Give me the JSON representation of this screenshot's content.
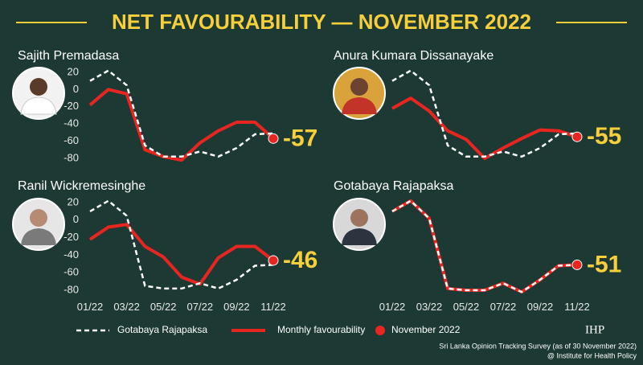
{
  "title": "NET FAVOURABILITY — NOVEMBER 2022",
  "highlight_label": "November 2022",
  "source": "Sri Lanka Opinion Tracking Survey (as of 30 November 2022)",
  "credit": "@ Institute for Health Policy",
  "logo": "IHP",
  "chart_data": [
    {
      "type": "line",
      "title": "Sajith Premadasa",
      "categories": [
        null,
        null,
        null,
        null,
        null,
        null,
        null,
        null,
        null,
        null,
        null
      ],
      "ylim": [
        -85,
        25
      ],
      "yticks": [
        20,
        0,
        -20,
        -40,
        -60,
        -80
      ],
      "series": [
        {
          "name": "Gotabaya Rajapaksa",
          "color": "#ffffff",
          "values": [
            10,
            22,
            5,
            -65,
            -78,
            -78,
            -72,
            -78,
            -68,
            -52,
            -51
          ]
        },
        {
          "name": "Monthly favourability",
          "color": "#e8261f",
          "values": [
            -18,
            0,
            -5,
            -70,
            -78,
            -82,
            -62,
            -48,
            -38,
            -38,
            -57
          ]
        }
      ]
    },
    {
      "type": "line",
      "title": "Anura Kumara Dissanayake",
      "categories": [
        null,
        null,
        null,
        null,
        null,
        null,
        null,
        null,
        null,
        null,
        null
      ],
      "ylim": [
        -85,
        25
      ],
      "series": [
        {
          "name": "Gotabaya Rajapaksa",
          "color": "#ffffff",
          "values": [
            10,
            22,
            5,
            -65,
            -78,
            -78,
            -72,
            -78,
            -68,
            -52,
            -51
          ]
        },
        {
          "name": "Monthly favourability",
          "color": "#e8261f",
          "values": [
            -22,
            -10,
            -25,
            -48,
            -58,
            -80,
            -68,
            -57,
            -47,
            -48,
            -55
          ]
        }
      ]
    },
    {
      "type": "line",
      "title": "Ranil Wickremesinghe",
      "categories": [
        "01/22",
        null,
        "03/22",
        null,
        "05/22",
        null,
        "07/22",
        null,
        "09/22",
        null,
        "11/22"
      ],
      "ylim": [
        -85,
        25
      ],
      "yticks": [
        20,
        0,
        -20,
        -40,
        -60,
        -80
      ],
      "series": [
        {
          "name": "Gotabaya Rajapaksa",
          "color": "#ffffff",
          "values": [
            10,
            22,
            5,
            -75,
            -78,
            -78,
            -72,
            -78,
            -68,
            -52,
            -51
          ]
        },
        {
          "name": "Monthly favourability",
          "color": "#e8261f",
          "values": [
            -22,
            -8,
            -5,
            -30,
            -42,
            -65,
            -73,
            -43,
            -30,
            -30,
            -46
          ]
        }
      ]
    },
    {
      "type": "line",
      "title": "Gotabaya Rajapaksa",
      "categories": [
        "01/22",
        null,
        "03/22",
        null,
        "05/22",
        null,
        "07/22",
        null,
        "09/22",
        null,
        "11/22"
      ],
      "ylim": [
        -85,
        25
      ],
      "series": [
        {
          "name": "Gotabaya Rajapaksa",
          "color": "#ffffff",
          "values": [
            10,
            22,
            2,
            -78,
            -80,
            -80,
            -72,
            -82,
            -68,
            -52,
            -51
          ]
        },
        {
          "name": "Monthly favourability",
          "color": "#e8261f",
          "values": [
            10,
            22,
            2,
            -78,
            -80,
            -80,
            -72,
            -82,
            -68,
            -52,
            -51
          ]
        }
      ]
    }
  ]
}
